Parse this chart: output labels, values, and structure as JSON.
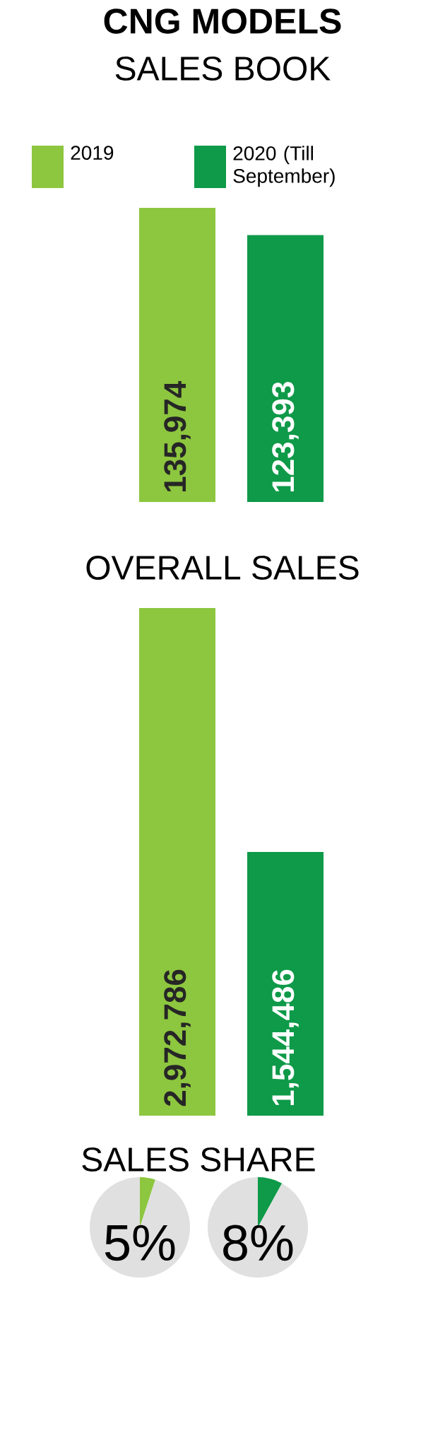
{
  "chart_data": [
    {
      "type": "bar",
      "title": "CNG MODELS",
      "subtitle": "SALES BOOK",
      "categories": [
        null
      ],
      "legend": "top",
      "series": [
        {
          "name": "2019",
          "color": "#8dc63f",
          "values": [
            135974
          ],
          "value_labels": [
            "135,974"
          ]
        },
        {
          "name": "2020 (Till September)",
          "color": "#0e9a48",
          "values": [
            123393
          ],
          "value_labels": [
            "123,393"
          ]
        }
      ]
    },
    {
      "type": "bar",
      "title": "OVERALL SALES",
      "categories": [
        null
      ],
      "series": [
        {
          "color": "#8dc63f",
          "values": [
            2972786
          ],
          "value_labels": [
            "2,972,786"
          ]
        },
        {
          "color": "#0e9a48",
          "values": [
            1544486
          ],
          "value_labels": [
            "1,544,486"
          ]
        }
      ]
    },
    {
      "type": "pie",
      "title": "SALES SHARE",
      "categories": [
        null,
        null
      ],
      "values": [
        5,
        95
      ],
      "colors": [
        "#8dc63f",
        "#e0e0e0"
      ],
      "annotations": [
        "5%"
      ]
    },
    {
      "type": "pie",
      "categories": [
        null,
        null
      ],
      "values": [
        8,
        92
      ],
      "colors": [
        "#0e9a48",
        "#e0e0e0"
      ],
      "annotations": [
        "8%"
      ]
    }
  ]
}
